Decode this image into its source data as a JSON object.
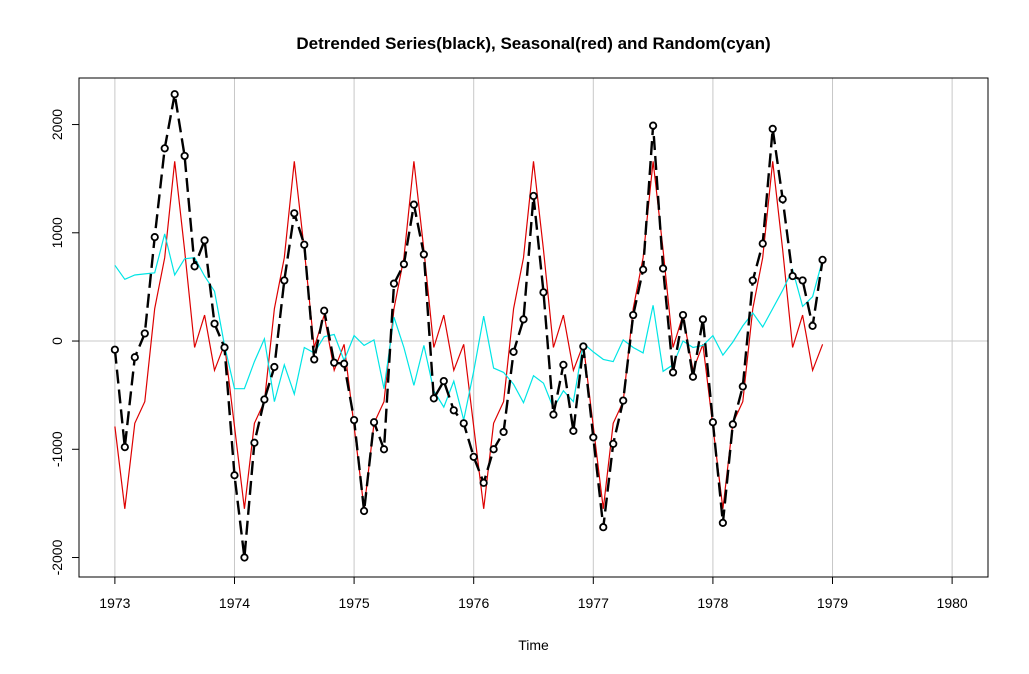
{
  "chart_data": {
    "type": "line",
    "title": "Detrended Series(black), Seasonal(red) and Random(cyan)",
    "xlabel": "Time",
    "ylabel": "",
    "xlim": [
      1972.7,
      1980.3
    ],
    "ylim": [
      -2180,
      2430
    ],
    "x_ticks": [
      1973,
      1974,
      1975,
      1976,
      1977,
      1978,
      1979,
      1980
    ],
    "x_tick_labels": [
      "1973",
      "1974",
      "1975",
      "1976",
      "1977",
      "1978",
      "1979",
      "1980"
    ],
    "y_ticks": [
      -2000,
      -1000,
      0,
      1000,
      2000
    ],
    "y_tick_labels": [
      "-2000",
      "-1000",
      "0",
      "1000",
      "2000"
    ],
    "grid": true,
    "x": [
      1973.0,
      1973.0833,
      1973.1667,
      1973.25,
      1973.3333,
      1973.4167,
      1973.5,
      1973.5833,
      1973.6667,
      1973.75,
      1973.8333,
      1973.9167,
      1974.0,
      1974.0833,
      1974.1667,
      1974.25,
      1974.3333,
      1974.4167,
      1974.5,
      1974.5833,
      1974.6667,
      1974.75,
      1974.8333,
      1974.9167,
      1975.0,
      1975.0833,
      1975.1667,
      1975.25,
      1975.3333,
      1975.4167,
      1975.5,
      1975.5833,
      1975.6667,
      1975.75,
      1975.8333,
      1975.9167,
      1976.0,
      1976.0833,
      1976.1667,
      1976.25,
      1976.3333,
      1976.4167,
      1976.5,
      1976.5833,
      1976.6667,
      1976.75,
      1976.8333,
      1976.9167,
      1977.0,
      1977.0833,
      1977.1667,
      1977.25,
      1977.3333,
      1977.4167,
      1977.5,
      1977.5833,
      1977.6667,
      1977.75,
      1977.8333,
      1977.9167,
      1978.0,
      1978.0833,
      1978.1667,
      1978.25,
      1978.3333,
      1978.4167,
      1978.5,
      1978.5833,
      1978.6667,
      1978.75,
      1978.8333,
      1978.9167
    ],
    "series": [
      {
        "color": "#000000",
        "style": "dashed line with open circle markers",
        "values": [
          -80,
          -980,
          -150,
          70,
          960,
          1780,
          2280,
          1710,
          690,
          930,
          160,
          -60,
          -1240,
          -2000,
          -940,
          -540,
          -240,
          560,
          1180,
          890,
          -170,
          280,
          -200,
          -210,
          -730,
          -1570,
          -750,
          -1000,
          530,
          710,
          1260,
          800,
          -530,
          -370,
          -640,
          -760,
          -1070,
          -1310,
          -1000,
          -840,
          -100,
          200,
          1340,
          450,
          -680,
          -220,
          -830,
          -50,
          -890,
          -1720,
          -950,
          -550,
          240,
          660,
          1990,
          670,
          -290,
          240,
          -330,
          200,
          -750,
          -1680,
          -770,
          -420,
          560,
          900,
          1960,
          1310,
          600,
          560,
          140,
          750
        ]
      },
      {
        "color": "#dd0000",
        "style": "solid line",
        "values": [
          -790,
          -1550,
          -760,
          -560,
          300,
          770,
          1660,
          840,
          -60,
          240,
          -270,
          -30,
          -790,
          -1550,
          -760,
          -560,
          300,
          770,
          1660,
          840,
          -60,
          240,
          -270,
          -30,
          -790,
          -1550,
          -760,
          -560,
          300,
          770,
          1660,
          840,
          -60,
          240,
          -270,
          -30,
          -790,
          -1550,
          -760,
          -560,
          300,
          770,
          1660,
          840,
          -60,
          240,
          -270,
          -30,
          -790,
          -1550,
          -760,
          -560,
          300,
          770,
          1660,
          840,
          -60,
          240,
          -270,
          -30,
          -790,
          -1550,
          -760,
          -560,
          300,
          770,
          1660,
          840,
          -60,
          240,
          -270,
          -30
        ]
      },
      {
        "color": "#00e5e5",
        "style": "solid line",
        "values": [
          700,
          570,
          610,
          620,
          630,
          990,
          610,
          760,
          770,
          600,
          460,
          -40,
          -440,
          -440,
          -190,
          20,
          -560,
          -220,
          -490,
          -60,
          -110,
          40,
          60,
          -180,
          50,
          -40,
          10,
          -440,
          220,
          -60,
          -410,
          -40,
          -460,
          -610,
          -370,
          -730,
          -280,
          230,
          -250,
          -290,
          -400,
          -570,
          -320,
          -390,
          -620,
          -460,
          -560,
          -20,
          -100,
          -170,
          -190,
          10,
          -60,
          -110,
          330,
          -280,
          -220,
          0,
          -60,
          -40,
          50,
          -130,
          -10,
          140,
          260,
          130,
          300,
          470,
          660,
          320,
          410,
          750
        ]
      }
    ]
  }
}
